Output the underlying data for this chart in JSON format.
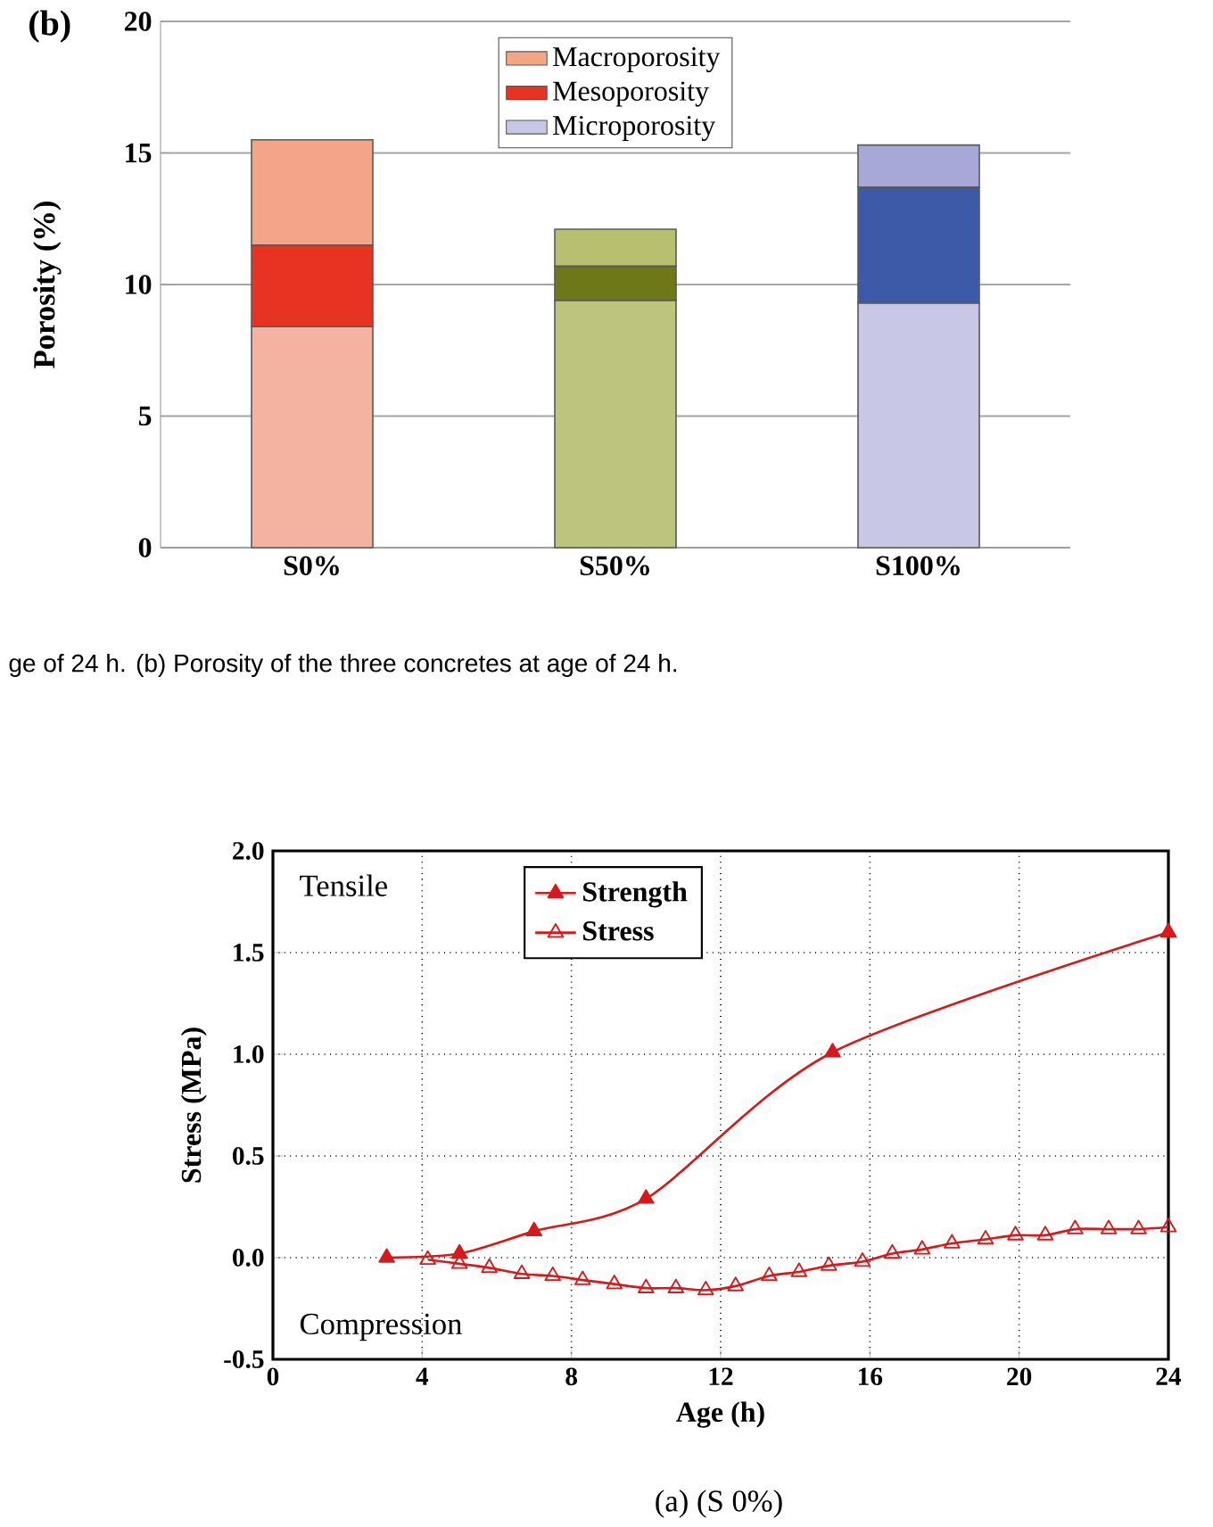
{
  "chart_data": [
    {
      "type": "bar",
      "title": "(b)",
      "ylabel": "Porosity (%)",
      "stacked": true,
      "grid": "y",
      "legend": "top",
      "categories": [
        "S0%",
        "S50%",
        "S100%"
      ],
      "ylim": [
        0,
        20
      ],
      "yticks": [
        0,
        5,
        10,
        15,
        20
      ],
      "series": [
        {
          "name": "Microporosity",
          "color": "#c8c8e6",
          "colors": [
            "#f4b2a0",
            "#bcc47e",
            "#c8c8e6"
          ],
          "values": [
            8.4,
            9.4,
            9.3
          ]
        },
        {
          "name": "Mesoporosity",
          "color": "#e83222",
          "colors": [
            "#e83222",
            "#6e7818",
            "#3c5aa8"
          ],
          "values": [
            3.1,
            1.3,
            4.4
          ]
        },
        {
          "name": "Macroporosity",
          "color": "#f4a582",
          "colors": [
            "#f4a488",
            "#b8c070",
            "#a8a8d8"
          ],
          "values": [
            4.0,
            1.4,
            1.6
          ]
        }
      ],
      "annotations": [
        "ge of 24 h. (b) Porosity of the three concretes at age of 24 h."
      ]
    },
    {
      "type": "line",
      "xlabel": "Age (h)",
      "ylabel": "Stress (MPa)",
      "grid": true,
      "legend": "top",
      "marker": "triangle",
      "xlim": [
        0,
        24
      ],
      "xticks": [
        0,
        4,
        8,
        12,
        16,
        20,
        24
      ],
      "ylim": [
        -0.5,
        2.0
      ],
      "yticks": [
        -0.5,
        {
          "value": 0,
          "label": "0.0"
        },
        0.5,
        {
          "value": 1,
          "label": "1.0"
        },
        1.5,
        {
          "value": 2,
          "label": "2.0"
        }
      ],
      "series": [
        {
          "name": "Strength",
          "color": "#d7191c",
          "x": [
            3.05,
            5,
            7,
            10,
            15,
            24
          ],
          "values": [
            0,
            0.02,
            0.13,
            0.29,
            1.01,
            1.6
          ]
        },
        {
          "name": "Stress",
          "color": "#d7191c",
          "x": [
            4.15,
            5,
            5.8,
            6.67,
            7.5,
            8.3,
            9.15,
            10,
            10.8,
            11.6,
            12.4,
            13.3,
            14.1,
            14.9,
            15.8,
            16.6,
            17.4,
            18.2,
            19.1,
            19.9,
            20.7,
            21.5,
            22.4,
            23.2,
            24
          ],
          "values": [
            -0.01,
            -0.03,
            -0.05,
            -0.08,
            -0.09,
            -0.11,
            -0.13,
            -0.15,
            -0.15,
            -0.16,
            -0.14,
            -0.09,
            -0.07,
            -0.04,
            -0.02,
            0.02,
            0.04,
            0.07,
            0.09,
            0.11,
            0.11,
            0.14,
            0.14,
            0.14,
            0.15
          ]
        }
      ],
      "annotations": [
        "Tensile",
        "Compression",
        "(a) (S 0%)"
      ]
    }
  ]
}
